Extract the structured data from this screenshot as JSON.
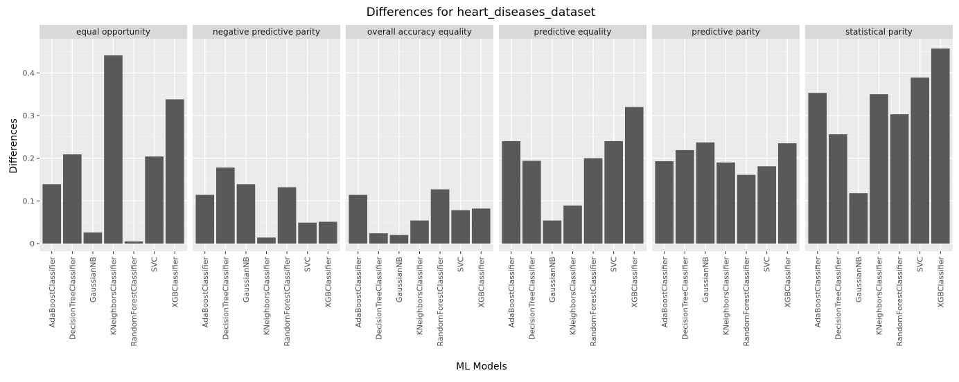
{
  "chart_data": {
    "type": "bar",
    "title": "Differences for heart_diseases_dataset",
    "xlabel": "ML Models",
    "ylabel": "Differences",
    "ylim": [
      -0.018,
      0.48
    ],
    "yticks": [
      0,
      0.1,
      0.2,
      0.3,
      0.4
    ],
    "ytick_labels": [
      "0",
      "0.1",
      "0.2",
      "0.3",
      "0.4"
    ],
    "grid": true,
    "categories": [
      "AdaBoostClassifier",
      "DecisionTreeClassifier",
      "GaussianNB",
      "KNeighborsClassifier",
      "RandomForestClassifier",
      "SVC",
      "XGBClassifier"
    ],
    "colors": {
      "bar": "#595959",
      "panel_bg": "#ebebeb",
      "grid_major": "#ffffff",
      "strip_bg": "#d9d9d9"
    },
    "facets": [
      {
        "name": "equal opportunity",
        "values": [
          0.139,
          0.209,
          0.026,
          0.441,
          0.005,
          0.204,
          0.338
        ]
      },
      {
        "name": "negative predictive parity",
        "values": [
          0.114,
          0.178,
          0.139,
          0.014,
          0.132,
          0.049,
          0.051
        ]
      },
      {
        "name": "overall accuracy equality",
        "values": [
          0.114,
          0.024,
          0.02,
          0.054,
          0.127,
          0.078,
          0.082
        ]
      },
      {
        "name": "predictive equality",
        "values": [
          0.24,
          0.194,
          0.054,
          0.089,
          0.2,
          0.24,
          0.32
        ]
      },
      {
        "name": "predictive parity",
        "values": [
          0.193,
          0.219,
          0.237,
          0.19,
          0.161,
          0.181,
          0.235
        ]
      },
      {
        "name": "statistical parity",
        "values": [
          0.353,
          0.256,
          0.118,
          0.35,
          0.303,
          0.389,
          0.457
        ]
      }
    ]
  }
}
